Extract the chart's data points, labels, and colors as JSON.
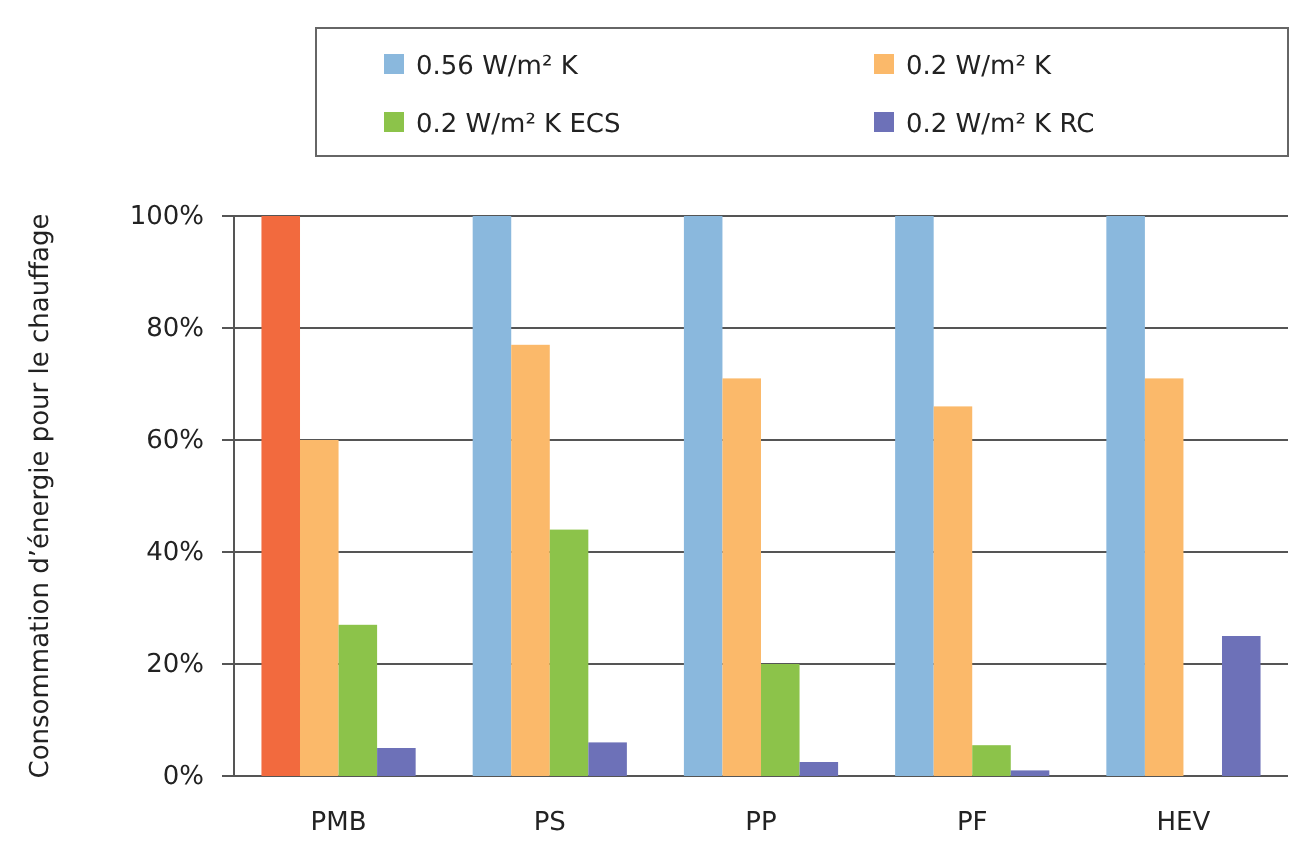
{
  "chart_data": {
    "type": "bar",
    "ylabel": "Consommation d’énergie pour le chauffage",
    "categories": [
      "PMB",
      "PS",
      "PP",
      "PF",
      "HEV"
    ],
    "series": [
      {
        "name": "0.56 W/m² K",
        "color": "#8ab8dd",
        "colors": [
          "#f26a3e",
          "#8ab8dd",
          "#8ab8dd",
          "#8ab8dd",
          "#8ab8dd"
        ],
        "values": [
          100,
          100,
          100,
          100,
          100
        ]
      },
      {
        "name": "0.2 W/m² K",
        "color": "#fbb96a",
        "values": [
          60,
          77,
          71,
          66,
          71
        ]
      },
      {
        "name": "0.2 W/m² K ECS",
        "color": "#8cc34a",
        "values": [
          27,
          44,
          20,
          5.5,
          null
        ]
      },
      {
        "name": "0.2 W/m² K RC",
        "color": "#6d71b8",
        "values": [
          5,
          6,
          2.5,
          1,
          25
        ]
      }
    ],
    "ylim": [
      0,
      100
    ],
    "yticks": [
      {
        "value": 0,
        "label": "0%"
      },
      {
        "value": 20,
        "label": "20%"
      },
      {
        "value": 40,
        "label": "40%"
      },
      {
        "value": 60,
        "label": "60%"
      },
      {
        "value": 80,
        "label": "80%"
      },
      {
        "value": 100,
        "label": "100%"
      }
    ],
    "grid": "y",
    "legend": "top"
  }
}
